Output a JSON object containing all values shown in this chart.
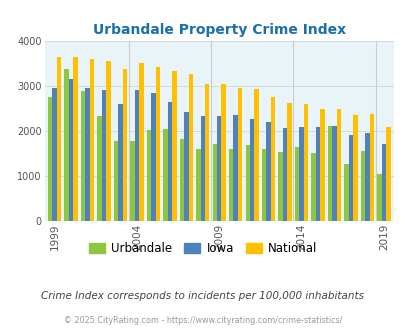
{
  "title": "Urbandale Property Crime Index",
  "subtitle": "Crime Index corresponds to incidents per 100,000 inhabitants",
  "footer": "© 2025 CityRating.com - https://www.cityrating.com/crime-statistics/",
  "years": [
    1999,
    2000,
    2001,
    2002,
    2003,
    2004,
    2005,
    2006,
    2007,
    2008,
    2009,
    2010,
    2011,
    2012,
    2013,
    2014,
    2015,
    2016,
    2017,
    2018,
    2019
  ],
  "urbandale": [
    2760,
    3390,
    2900,
    2340,
    1790,
    1780,
    2030,
    2040,
    1820,
    1600,
    1720,
    1610,
    1700,
    1600,
    1540,
    1640,
    1520,
    2120,
    1260,
    1570,
    1050
  ],
  "iowa": [
    2960,
    3170,
    2970,
    2920,
    2610,
    2920,
    2860,
    2650,
    2430,
    2330,
    2330,
    2350,
    2270,
    2200,
    2080,
    2100,
    2085,
    2120,
    1910,
    1960,
    1720
  ],
  "national": [
    3640,
    3640,
    3610,
    3560,
    3380,
    3520,
    3430,
    3340,
    3280,
    3050,
    3050,
    2960,
    2940,
    2760,
    2620,
    2600,
    2500,
    2500,
    2360,
    2380,
    2100
  ],
  "color_urbandale": "#8dc63f",
  "color_iowa": "#4f81bd",
  "color_national": "#ffc000",
  "bg_color": "#e8f4f8",
  "ylim": [
    0,
    4000
  ],
  "yticks": [
    0,
    1000,
    2000,
    3000,
    4000
  ],
  "xtick_years": [
    1999,
    2004,
    2009,
    2014,
    2019
  ],
  "divider_years": [
    2004,
    2009,
    2014,
    2019
  ],
  "bar_width": 0.27,
  "title_color": "#1a6faf",
  "subtitle_color": "#444444",
  "footer_color": "#999999"
}
